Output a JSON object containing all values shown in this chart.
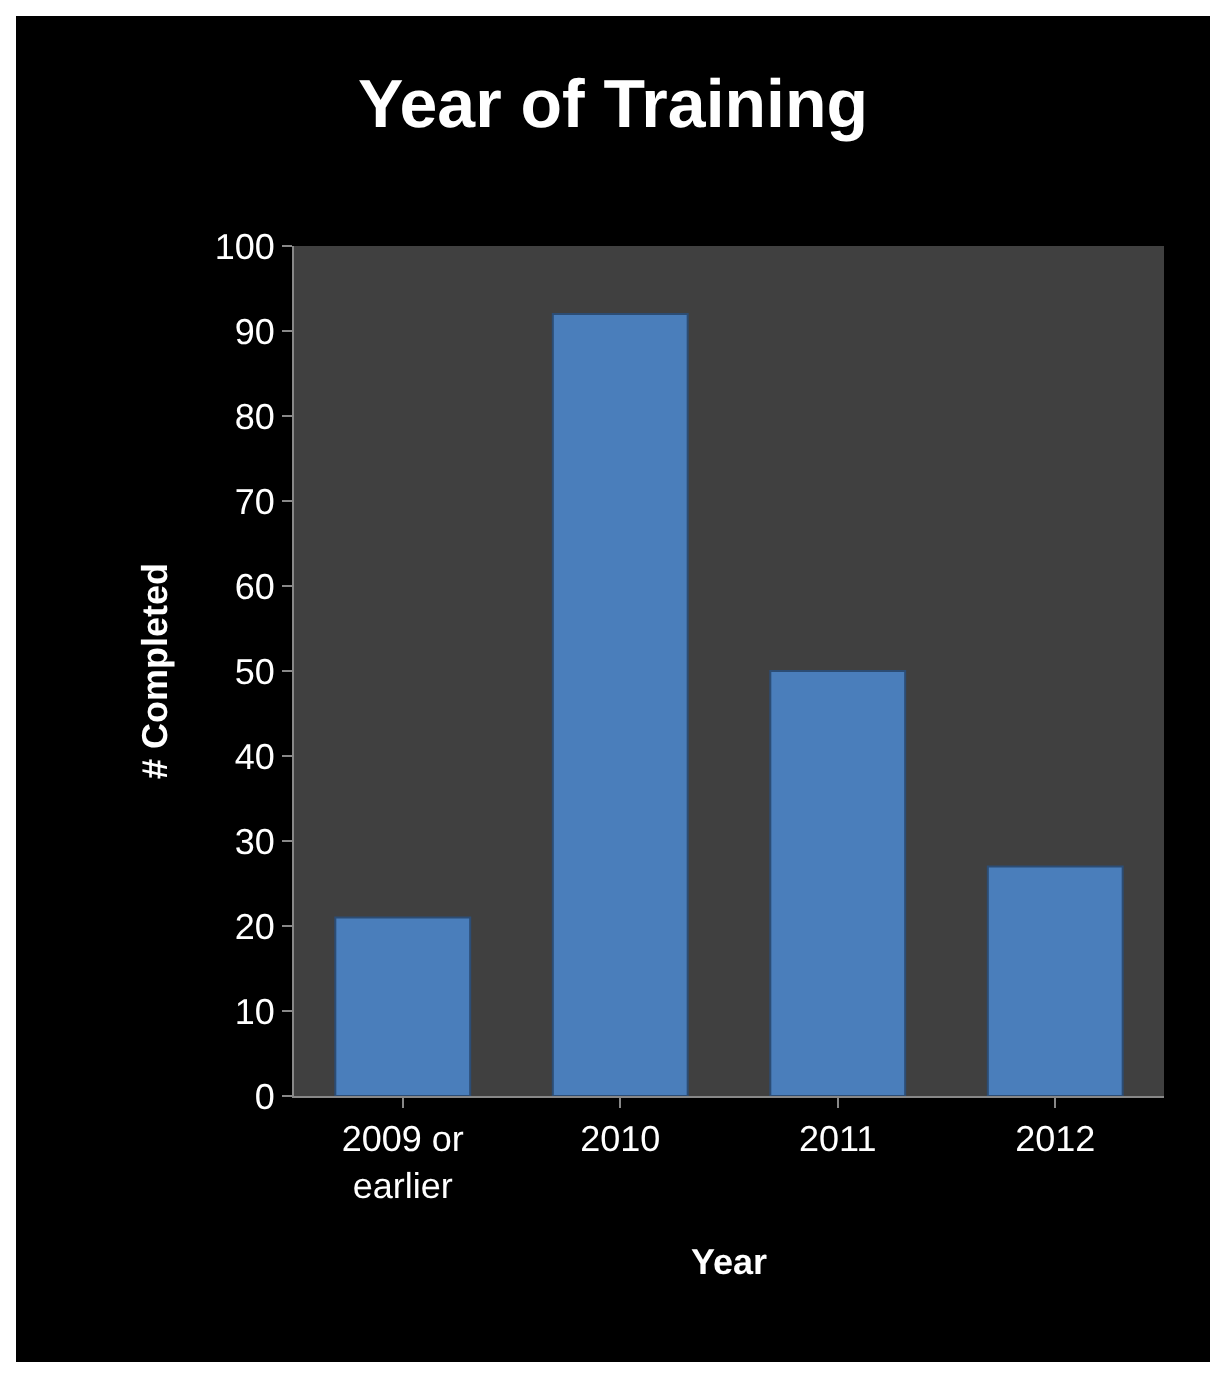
{
  "chart_data": {
    "type": "bar",
    "title": "Year of Training",
    "xlabel": "Year",
    "ylabel": "# Completed",
    "categories": [
      "2009 or earlier",
      "2010",
      "2011",
      "2012"
    ],
    "values": [
      21,
      92,
      50,
      27
    ],
    "color": "#4a7ebb",
    "ylim": [
      0,
      100
    ],
    "yticks": [
      0,
      10,
      20,
      30,
      40,
      50,
      60,
      70,
      80,
      90,
      100
    ]
  }
}
